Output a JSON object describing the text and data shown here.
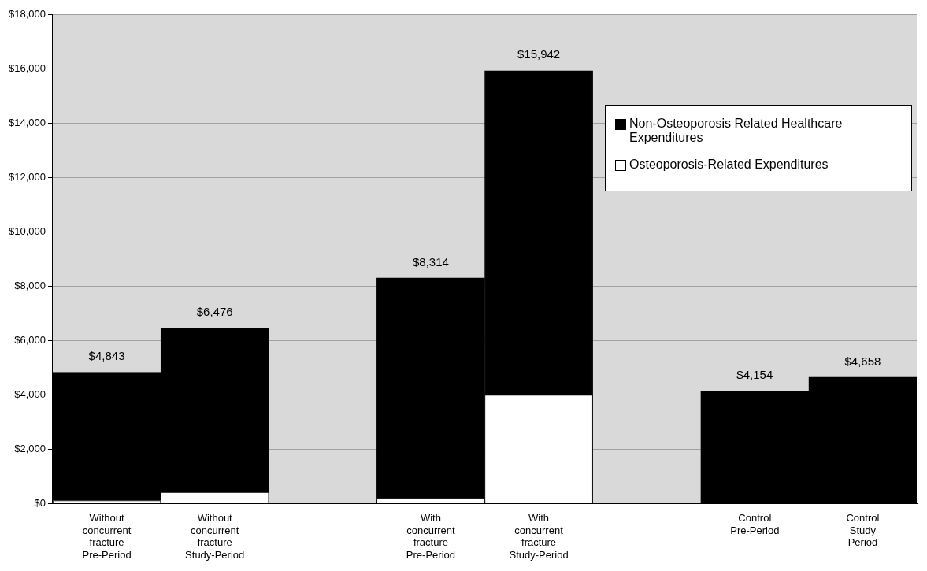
{
  "chart_data": {
    "type": "bar",
    "stacked": true,
    "categories": [
      "Without concurrent fracture Pre-Period",
      "Without concurrent fracture Study-Period",
      null,
      "With concurrent fracture Pre-Period",
      "With concurrent fracture Study-Period",
      null,
      "Control Pre-Period",
      "Control Study Period"
    ],
    "series": [
      {
        "name": "Osteoporosis-Related Expenditures",
        "color": "#ffffff",
        "values": [
          120,
          420,
          null,
          200,
          4000,
          null,
          0,
          0
        ]
      },
      {
        "name": "Non-Osteoporosis Related Healthcare Expenditures",
        "color": "#000000",
        "values": [
          4723,
          6056,
          null,
          8114,
          11942,
          null,
          4154,
          4658
        ]
      }
    ],
    "totals": [
      "$4,843",
      "$6,476",
      null,
      "$8,314",
      "$15,942",
      null,
      "$4,154",
      "$4,658"
    ],
    "ylim": [
      0,
      18000
    ],
    "yticks": [
      {
        "value": 0,
        "label": "$0"
      },
      {
        "value": 2000,
        "label": "$2,000"
      },
      {
        "value": 4000,
        "label": "$4,000"
      },
      {
        "value": 6000,
        "label": "$6,000"
      },
      {
        "value": 8000,
        "label": "$8,000"
      },
      {
        "value": 10000,
        "label": "$10,000"
      },
      {
        "value": 12000,
        "label": "$12,000"
      },
      {
        "value": 14000,
        "label": "$14,000"
      },
      {
        "value": 16000,
        "label": "$16,000"
      },
      {
        "value": 18000,
        "label": "$18,000"
      }
    ],
    "grid": "y",
    "legend": "right"
  }
}
